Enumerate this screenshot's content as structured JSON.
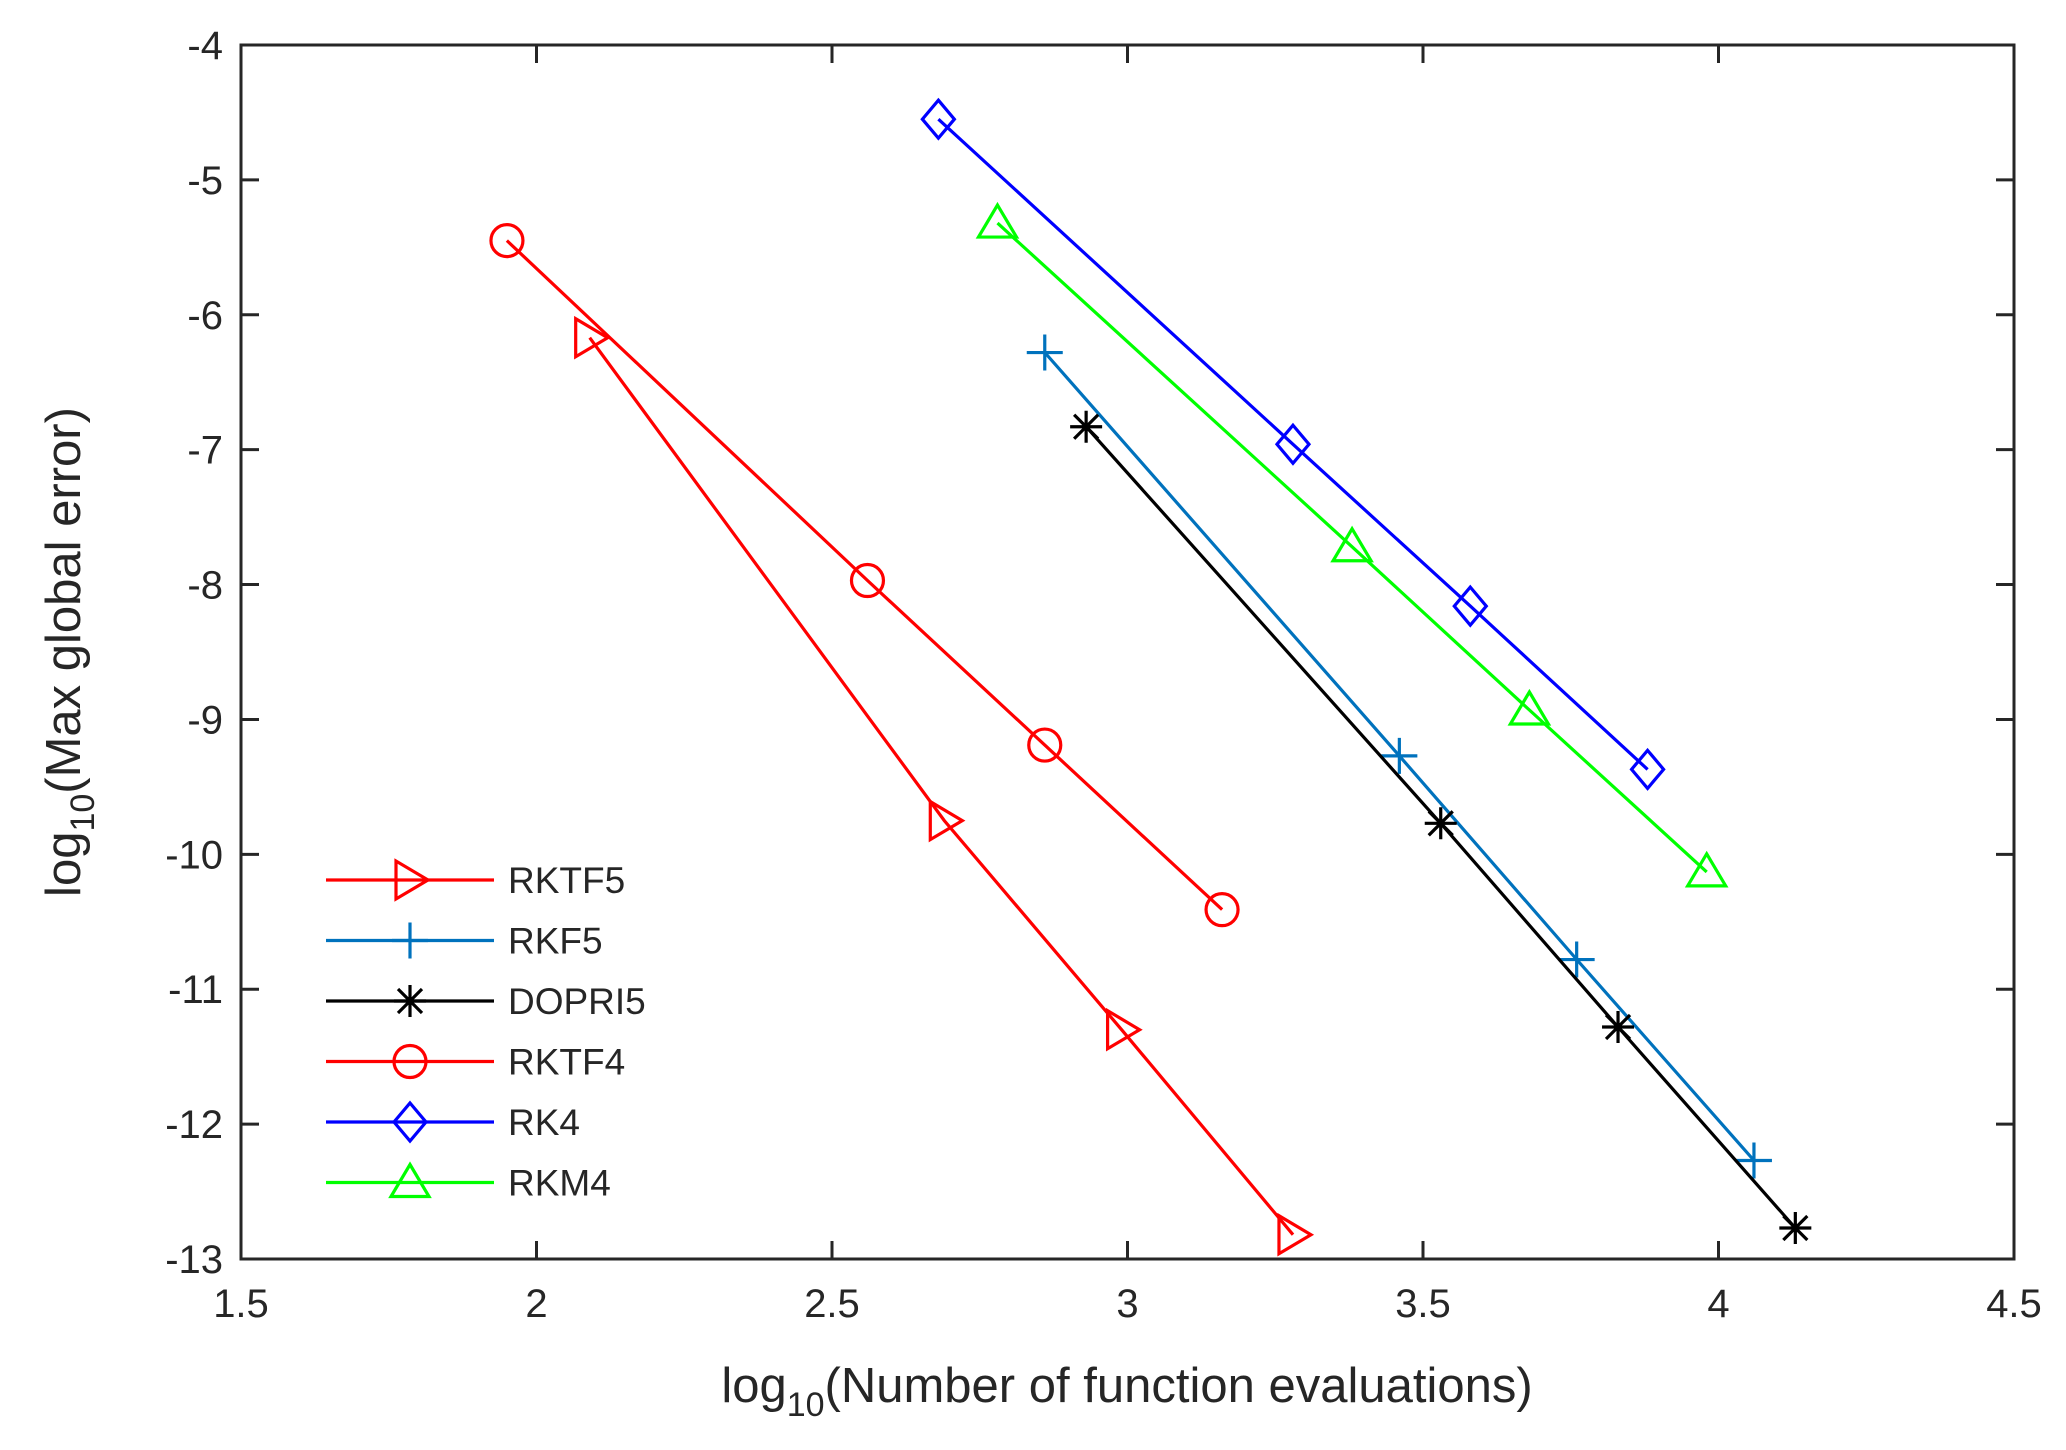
{
  "chart_data": {
    "type": "line",
    "title": "",
    "xlabel": {
      "prefix": "log",
      "sub": "10",
      "rest": "(Number of function evaluations)"
    },
    "ylabel": {
      "prefix": "log",
      "sub": "10",
      "rest": "(Max global error)"
    },
    "xlim": [
      1.5,
      4.5
    ],
    "ylim": [
      -13,
      -4
    ],
    "xticks": [
      1.5,
      2,
      2.5,
      3,
      3.5,
      4,
      4.5
    ],
    "xtick_labels": [
      "1.5",
      "2",
      "2.5",
      "3",
      "3.5",
      "4",
      "4.5"
    ],
    "yticks": [
      -4,
      -5,
      -6,
      -7,
      -8,
      -9,
      -10,
      -11,
      -12,
      -13
    ],
    "ytick_labels": [
      "-4",
      "-5",
      "-6",
      "-7",
      "-8",
      "-9",
      "-10",
      "-11",
      "-12",
      "-13"
    ],
    "grid": false,
    "legend_position": "bottom-left",
    "series": [
      {
        "name": " RKTF5",
        "color": "#ff0000",
        "marker": "triangle-right",
        "x": [
          2.09,
          2.69,
          2.99,
          3.28
        ],
        "y": [
          -6.17,
          -9.75,
          -11.3,
          -12.82
        ]
      },
      {
        "name": "RKF5",
        "color": "#0072bd",
        "marker": "plus",
        "x": [
          2.86,
          3.46,
          3.76,
          4.06
        ],
        "y": [
          -6.28,
          -9.27,
          -10.78,
          -12.27
        ]
      },
      {
        "name": "DOPRI5",
        "color": "#000000",
        "marker": "asterisk",
        "x": [
          2.93,
          3.53,
          3.83,
          4.13
        ],
        "y": [
          -6.83,
          -9.77,
          -11.28,
          -12.77
        ]
      },
      {
        "name": "RKTF4",
        "color": "#ff0000",
        "marker": "circle",
        "x": [
          1.95,
          2.56,
          2.86,
          3.16
        ],
        "y": [
          -5.45,
          -7.97,
          -9.19,
          -10.41
        ]
      },
      {
        "name": "RK4",
        "color": "#0000ff",
        "marker": "diamond",
        "x": [
          2.68,
          3.28,
          3.58,
          3.88
        ],
        "y": [
          -4.55,
          -6.96,
          -8.16,
          -9.37
        ]
      },
      {
        "name": "RKM4",
        "color": "#00ff00",
        "marker": "triangle-up",
        "x": [
          2.78,
          3.38,
          3.68,
          3.98
        ],
        "y": [
          -5.32,
          -7.72,
          -8.93,
          -10.13
        ]
      }
    ]
  }
}
